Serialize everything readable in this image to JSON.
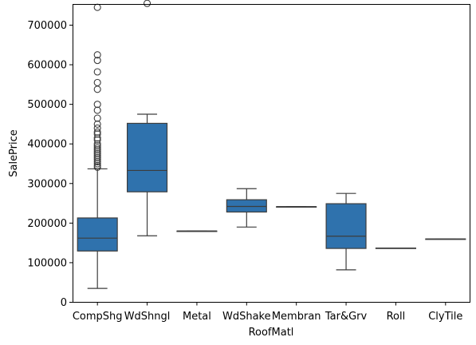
{
  "chart_data": {
    "type": "boxplot",
    "xlabel": "RoofMatl",
    "ylabel": "SalePrice",
    "ylim": [
      0,
      790000
    ],
    "yticks": [
      {
        "value": 0,
        "label": "0"
      },
      {
        "value": 100000,
        "label": "100000"
      },
      {
        "value": 200000,
        "label": "200000"
      },
      {
        "value": 300000,
        "label": "300000"
      },
      {
        "value": 400000,
        "label": "400000"
      },
      {
        "value": 500000,
        "label": "500000"
      },
      {
        "value": 600000,
        "label": "600000"
      },
      {
        "value": 700000,
        "label": "700000"
      }
    ],
    "grid": false,
    "box_color": "#2f72ad",
    "line_color": "#3d3d3d",
    "categories": [
      "CompShg",
      "WdShngl",
      "Metal",
      "WdShake",
      "Membran",
      "Tar&Grv",
      "Roll",
      "ClyTile"
    ],
    "boxes": [
      {
        "category": "CompShg",
        "whisker_low": 35000,
        "q1": 129500,
        "median": 162000,
        "q3": 213000,
        "whisker_high": 337000,
        "outliers": [
          341000,
          345000,
          350000,
          355000,
          360000,
          365000,
          370000,
          375000,
          380000,
          385000,
          390000,
          395000,
          400000,
          410000,
          415000,
          425000,
          430000,
          440000,
          450000,
          465000,
          485000,
          500000,
          538000,
          555000,
          582000,
          611000,
          625000,
          745000
        ]
      },
      {
        "category": "WdShngl",
        "whisker_low": 168000,
        "q1": 279000,
        "median": 333000,
        "q3": 452000,
        "whisker_high": 475000,
        "outliers": [
          755000
        ]
      },
      {
        "category": "Metal",
        "whisker_low": 180000,
        "q1": 180000,
        "median": 180000,
        "q3": 180000,
        "whisker_high": 180000,
        "outliers": []
      },
      {
        "category": "WdShake",
        "whisker_low": 190000,
        "q1": 228000,
        "median": 242000,
        "q3": 259000,
        "whisker_high": 287000,
        "outliers": []
      },
      {
        "category": "Membran",
        "whisker_low": 241500,
        "q1": 241500,
        "median": 241500,
        "q3": 241500,
        "whisker_high": 241500,
        "outliers": []
      },
      {
        "category": "Tar&Grv",
        "whisker_low": 82000,
        "q1": 136000,
        "median": 167000,
        "q3": 249000,
        "whisker_high": 275000,
        "outliers": []
      },
      {
        "category": "Roll",
        "whisker_low": 137000,
        "q1": 137000,
        "median": 137000,
        "q3": 137000,
        "whisker_high": 137000,
        "outliers": []
      },
      {
        "category": "ClyTile",
        "whisker_low": 160000,
        "q1": 160000,
        "median": 160000,
        "q3": 160000,
        "whisker_high": 160000,
        "outliers": []
      }
    ]
  }
}
